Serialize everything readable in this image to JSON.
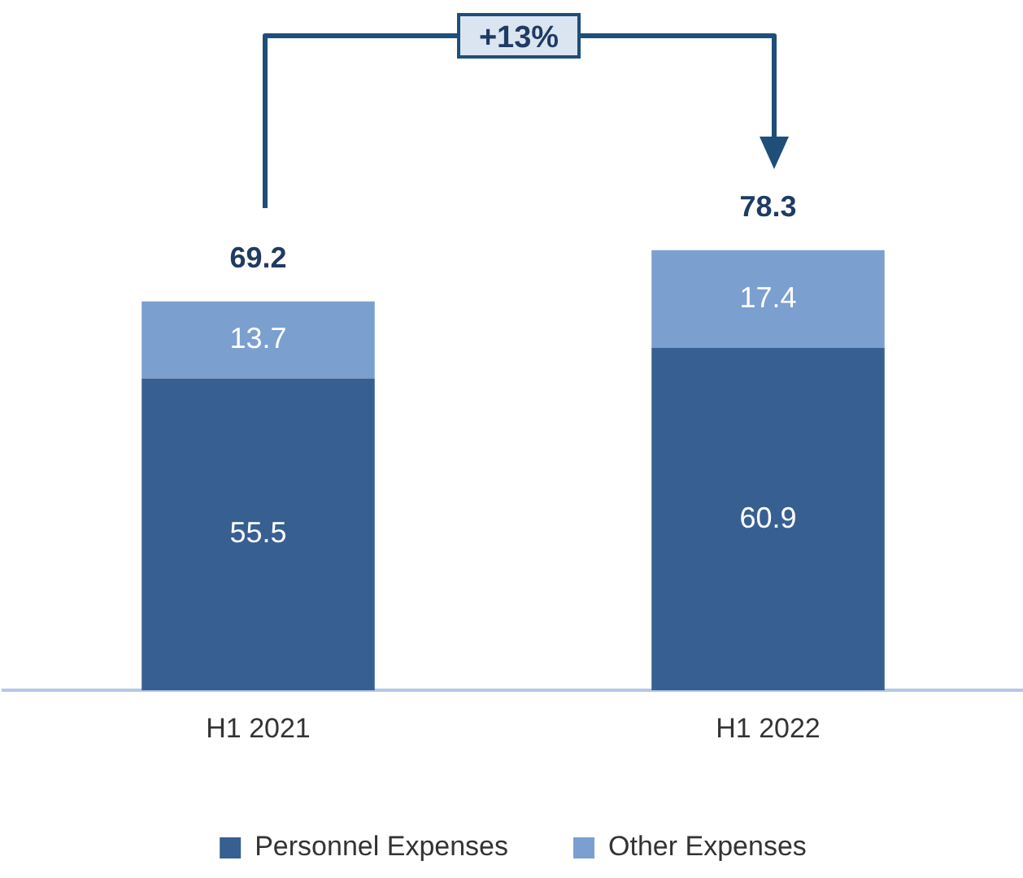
{
  "chart_data": {
    "type": "bar",
    "stacked": true,
    "categories": [
      "H1 2021",
      "H1 2022"
    ],
    "series": [
      {
        "name": "Personnel Expenses",
        "color": "#375f92",
        "values": [
          55.5,
          60.9
        ]
      },
      {
        "name": "Other Expenses",
        "color": "#7b9fcf",
        "values": [
          13.7,
          17.4
        ]
      }
    ],
    "totals": [
      "69.2",
      "78.3"
    ],
    "data_labels": true,
    "annotations": [
      "+13%"
    ],
    "legend": "bottom",
    "tick_labels": "x",
    "grid": false
  }
}
